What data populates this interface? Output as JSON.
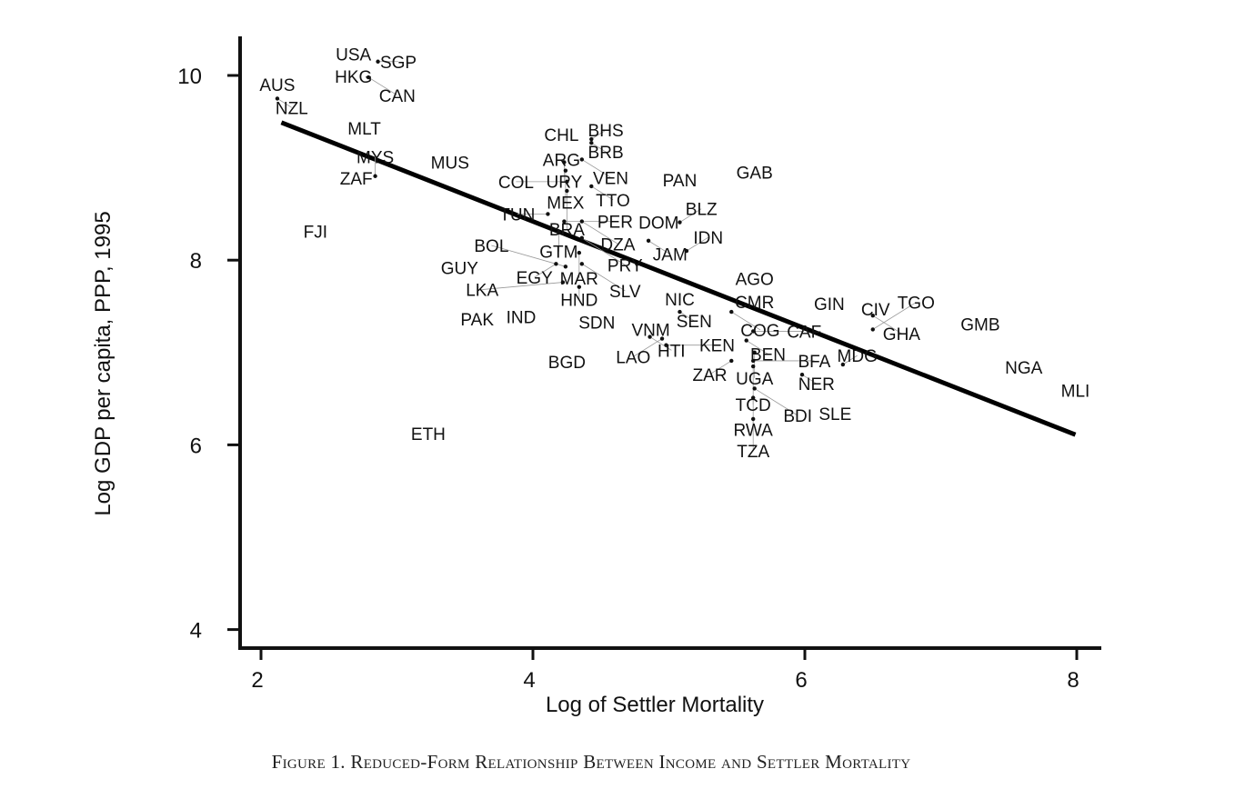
{
  "caption": "Figure 1. Reduced-Form Relationship Between Income and Settler Mortality",
  "chart_data": {
    "type": "scatter",
    "title": "",
    "xlabel": "Log of Settler Mortality",
    "ylabel": "Log GDP per capita, PPP, 1995",
    "xlim": [
      1.85,
      8.17
    ],
    "ylim": [
      3.8,
      10.42
    ],
    "xticks": [
      "2",
      "4",
      "6",
      "8"
    ],
    "yticks": [
      "4",
      "6",
      "8",
      "10"
    ],
    "grid": false,
    "fit_line": {
      "x": [
        2.15,
        7.99
      ],
      "y": [
        9.49,
        6.11
      ]
    },
    "points": [
      {
        "label": "USA",
        "x": 2.68,
        "y": 10.23
      },
      {
        "label": "SGP",
        "x": 2.86,
        "y": 10.15
      },
      {
        "label": "HKG",
        "x": 2.68,
        "y": 10.06
      },
      {
        "label": "CAN",
        "x": 2.79,
        "y": 9.98
      },
      {
        "label": "AUS",
        "x": 2.12,
        "y": 9.9
      },
      {
        "label": "NZL",
        "x": 2.12,
        "y": 9.75
      },
      {
        "label": "MLT",
        "x": 2.76,
        "y": 9.43
      },
      {
        "label": "MUS",
        "x": 3.39,
        "y": 9.06
      },
      {
        "label": "ZAF",
        "x": 2.7,
        "y": 8.89
      },
      {
        "label": "MYS",
        "x": 2.84,
        "y": 8.91
      },
      {
        "label": "FJI",
        "x": 2.4,
        "y": 8.31
      },
      {
        "label": "GUY",
        "x": 3.46,
        "y": 7.92
      },
      {
        "label": "PAK",
        "x": 3.59,
        "y": 7.36
      },
      {
        "label": "IND",
        "x": 3.86,
        "y": 7.34
      },
      {
        "label": "ETH",
        "x": 3.23,
        "y": 6.12
      },
      {
        "label": "BGD",
        "x": 4.25,
        "y": 6.9
      },
      {
        "label": "SDN",
        "x": 4.47,
        "y": 7.33
      },
      {
        "label": "CHL",
        "x": 4.21,
        "y": 9.36
      },
      {
        "label": "BHS",
        "x": 4.43,
        "y": 9.31
      },
      {
        "label": "BRB",
        "x": 4.43,
        "y": 9.27
      },
      {
        "label": "ARG",
        "x": 4.21,
        "y": 9.16
      },
      {
        "label": "URY",
        "x": 4.23,
        "y": 9.06
      },
      {
        "label": "VEN",
        "x": 4.36,
        "y": 9.09
      },
      {
        "label": "MEX",
        "x": 4.24,
        "y": 8.97
      },
      {
        "label": "COL",
        "x": 4.25,
        "y": 8.85
      },
      {
        "label": "TTO",
        "x": 4.43,
        "y": 8.8
      },
      {
        "label": "BRA",
        "x": 4.25,
        "y": 8.75
      },
      {
        "label": "TUN",
        "x": 4.11,
        "y": 8.5
      },
      {
        "label": "PER",
        "x": 4.23,
        "y": 8.42
      },
      {
        "label": "DZA",
        "x": 4.36,
        "y": 8.42
      },
      {
        "label": "GTM",
        "x": 4.19,
        "y": 8.3
      },
      {
        "label": "PRY",
        "x": 4.36,
        "y": 8.24
      },
      {
        "label": "MAR",
        "x": 4.34,
        "y": 8.08
      },
      {
        "label": "EGY",
        "x": 4.17,
        "y": 7.96
      },
      {
        "label": "SLV",
        "x": 4.36,
        "y": 7.96
      },
      {
        "label": "BOL",
        "x": 4.24,
        "y": 7.93
      },
      {
        "label": "LKA",
        "x": 4.22,
        "y": 7.76
      },
      {
        "label": "HND",
        "x": 4.34,
        "y": 7.71
      },
      {
        "label": "PAN",
        "x": 5.08,
        "y": 8.87
      },
      {
        "label": "GAB",
        "x": 5.63,
        "y": 8.95
      },
      {
        "label": "DOM",
        "x": 4.85,
        "y": 8.41
      },
      {
        "label": "BLZ",
        "x": 5.08,
        "y": 8.41
      },
      {
        "label": "JAM",
        "x": 4.85,
        "y": 8.21
      },
      {
        "label": "IDN",
        "x": 5.13,
        "y": 8.1
      },
      {
        "label": "NIC",
        "x": 5.08,
        "y": 7.58
      },
      {
        "label": "SEN",
        "x": 5.08,
        "y": 7.44
      },
      {
        "label": "VNM",
        "x": 4.92,
        "y": 7.3
      },
      {
        "label": "HTI",
        "x": 4.86,
        "y": 7.17
      },
      {
        "label": "LAO",
        "x": 4.95,
        "y": 7.15
      },
      {
        "label": "KEN",
        "x": 4.98,
        "y": 7.08
      },
      {
        "label": "AGO",
        "x": 5.63,
        "y": 7.8
      },
      {
        "label": "CMR",
        "x": 5.63,
        "y": 7.55
      },
      {
        "label": "COG",
        "x": 5.46,
        "y": 7.44
      },
      {
        "label": "CAF",
        "x": 5.62,
        "y": 7.23
      },
      {
        "label": "BEN",
        "x": 5.57,
        "y": 7.13
      },
      {
        "label": "UGA",
        "x": 5.63,
        "y": 7.0
      },
      {
        "label": "ZAR",
        "x": 5.46,
        "y": 6.91
      },
      {
        "label": "BFA",
        "x": 5.62,
        "y": 6.91
      },
      {
        "label": "TCD",
        "x": 5.62,
        "y": 6.85
      },
      {
        "label": "NER",
        "x": 5.98,
        "y": 6.76
      },
      {
        "label": "MDG",
        "x": 6.28,
        "y": 6.87
      },
      {
        "label": "BDI",
        "x": 5.63,
        "y": 6.61
      },
      {
        "label": "RWA",
        "x": 5.62,
        "y": 6.51
      },
      {
        "label": "TZA",
        "x": 5.62,
        "y": 6.28
      },
      {
        "label": "SLE",
        "x": 6.17,
        "y": 6.29
      },
      {
        "label": "GIN",
        "x": 6.18,
        "y": 7.53
      },
      {
        "label": "CIV",
        "x": 6.52,
        "y": 7.47
      },
      {
        "label": "GHA",
        "x": 6.5,
        "y": 7.4
      },
      {
        "label": "TGO",
        "x": 6.5,
        "y": 7.25
      },
      {
        "label": "GMB",
        "x": 7.29,
        "y": 7.31
      },
      {
        "label": "NGA",
        "x": 7.61,
        "y": 6.84
      },
      {
        "label": "MLI",
        "x": 7.99,
        "y": 6.59
      }
    ]
  }
}
